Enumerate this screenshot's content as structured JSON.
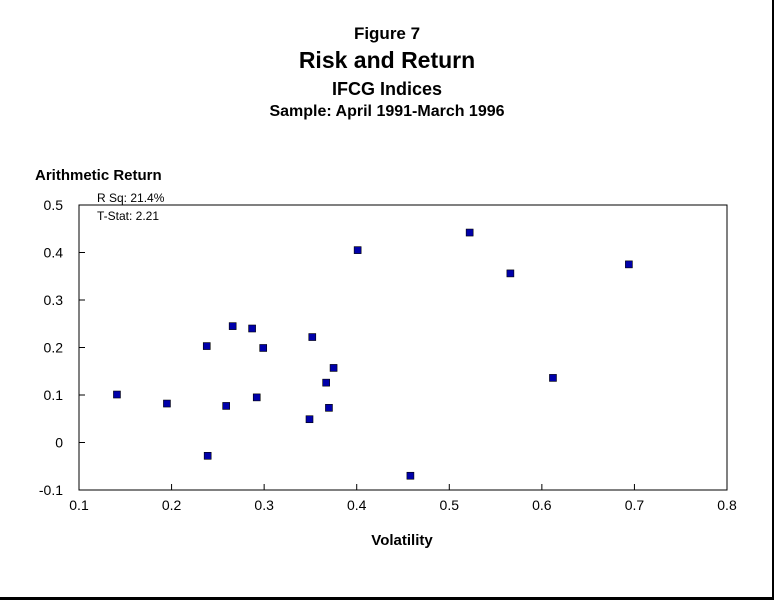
{
  "chart_data": {
    "type": "scatter",
    "figure_label": "Figure 7",
    "title": "Risk and Return",
    "subtitle": "IFCG Indices",
    "sample": "Sample: April 1991-March 1996",
    "xlabel": "Volatility",
    "ylabel": "Arithmetic Return",
    "annotations": [
      "R Sq: 21.4%",
      "T-Stat: 2.21"
    ],
    "xlim": [
      0.1,
      0.8
    ],
    "ylim": [
      -0.1,
      0.5
    ],
    "x_ticks": [
      "0.1",
      "0.2",
      "0.3",
      "0.4",
      "0.5",
      "0.6",
      "0.7",
      "0.8"
    ],
    "y_ticks": [
      "0.5",
      "0.4",
      "0.3",
      "0.2",
      "0.1",
      "0",
      "-0.1"
    ],
    "grid": false,
    "marker_color": "#0000aa",
    "points": [
      {
        "x": 0.141,
        "y": 0.101
      },
      {
        "x": 0.195,
        "y": 0.082
      },
      {
        "x": 0.238,
        "y": 0.203
      },
      {
        "x": 0.239,
        "y": -0.028
      },
      {
        "x": 0.259,
        "y": 0.077
      },
      {
        "x": 0.266,
        "y": 0.245
      },
      {
        "x": 0.287,
        "y": 0.24
      },
      {
        "x": 0.292,
        "y": 0.095
      },
      {
        "x": 0.299,
        "y": 0.199
      },
      {
        "x": 0.349,
        "y": 0.049
      },
      {
        "x": 0.352,
        "y": 0.222
      },
      {
        "x": 0.367,
        "y": 0.126
      },
      {
        "x": 0.37,
        "y": 0.073
      },
      {
        "x": 0.375,
        "y": 0.157
      },
      {
        "x": 0.401,
        "y": 0.405
      },
      {
        "x": 0.458,
        "y": -0.07
      },
      {
        "x": 0.522,
        "y": 0.442
      },
      {
        "x": 0.566,
        "y": 0.356
      },
      {
        "x": 0.612,
        "y": 0.136
      },
      {
        "x": 0.694,
        "y": 0.375
      }
    ]
  }
}
